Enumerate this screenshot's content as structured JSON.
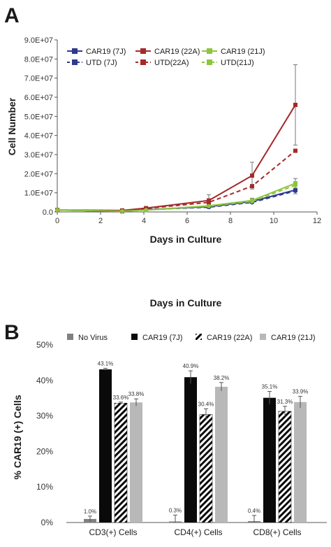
{
  "chart_data": [
    {
      "panel": "A",
      "type": "line",
      "xlabel": "Days in Culture",
      "ylabel": "Cell Number",
      "xlim": [
        0,
        12
      ],
      "ylim": [
        0,
        90000000
      ],
      "x_ticks": [
        "0",
        "2",
        "4",
        "6",
        "8",
        "10",
        "12"
      ],
      "y_ticks": [
        "0.0",
        "1.0E+07",
        "2.0E+07",
        "3.0E+07",
        "4.0E+07",
        "5.0E+07",
        "6.0E+07",
        "7.0E+07",
        "8.0E+07",
        "9.0E+07"
      ],
      "grid": false,
      "legend_position": "top-left",
      "series": [
        {
          "name": "CAR19 (7J)",
          "color": "#2e3a8c",
          "style": "solid",
          "marker": "square",
          "x": [
            0,
            3,
            4.1,
            7,
            9,
            11
          ],
          "y": [
            1000000,
            300000,
            1200000,
            2800000,
            5500000,
            11500000
          ],
          "err": [
            0,
            0,
            0,
            500000,
            1000000,
            2000000
          ]
        },
        {
          "name": "CAR19 (22A)",
          "color": "#a52a2a",
          "style": "solid",
          "marker": "square",
          "x": [
            0,
            3,
            4.1,
            7,
            9,
            11
          ],
          "y": [
            1000000,
            800000,
            2000000,
            6000000,
            19000000,
            56000000
          ],
          "err": [
            0,
            0,
            0,
            3000000,
            7000000,
            21000000
          ]
        },
        {
          "name": "CAR19 (21J)",
          "color": "#8cc63e",
          "style": "solid",
          "marker": "square",
          "x": [
            0,
            3,
            4.1,
            7,
            9,
            11
          ],
          "y": [
            1000000,
            400000,
            1000000,
            3200000,
            6000000,
            15000000
          ],
          "err": [
            0,
            0,
            0,
            600000,
            1200000,
            2500000
          ]
        },
        {
          "name": "UTD (7J)",
          "color": "#2e3a8c",
          "style": "dashed",
          "marker": "circle",
          "x": [
            0,
            3,
            4.1,
            7,
            9,
            11
          ],
          "y": [
            1000000,
            300000,
            1200000,
            2500000,
            5000000,
            11000000
          ],
          "err": [
            0,
            0,
            0,
            0,
            0,
            0
          ]
        },
        {
          "name": "UTD(22A)",
          "color": "#a52a2a",
          "style": "dashed",
          "marker": "square",
          "x": [
            0,
            3,
            4.1,
            7,
            9,
            11
          ],
          "y": [
            1000000,
            700000,
            1800000,
            5000000,
            13500000,
            32000000
          ],
          "err": [
            0,
            0,
            0,
            0,
            0,
            0
          ]
        },
        {
          "name": "UTD(21J)",
          "color": "#8cc63e",
          "style": "dashed",
          "marker": "circle",
          "x": [
            0,
            3,
            4.1,
            7,
            9,
            11
          ],
          "y": [
            1000000,
            400000,
            1000000,
            3000000,
            5500000,
            14000000
          ],
          "err": [
            0,
            0,
            0,
            0,
            0,
            0
          ]
        }
      ]
    },
    {
      "panel": "B",
      "type": "bar",
      "title": "Days in Culture",
      "ylabel": "% CAR19 (+) Cells",
      "ylim": [
        0,
        50
      ],
      "y_ticks": [
        "0%",
        "10%",
        "20%",
        "30%",
        "40%",
        "50%"
      ],
      "grid": false,
      "legend_position": "top",
      "categories": [
        "CD3(+) Cells",
        "CD4(+) Cells",
        "CD8(+) Cells"
      ],
      "series": [
        {
          "name": "No Virus",
          "fill": "#808080",
          "pattern": "solid",
          "values": [
            1.0,
            0.3,
            0.4
          ],
          "err": [
            0.8,
            1.8,
            1.6
          ],
          "labels": [
            "1.0%",
            "0.3%",
            "0.4%"
          ]
        },
        {
          "name": "CAR19 (7J)",
          "fill": "#0a0a0a",
          "pattern": "solid",
          "values": [
            43.1,
            40.9,
            35.1
          ],
          "err": [
            0.3,
            1.8,
            1.8
          ],
          "labels": [
            "43.1%",
            "40.9%",
            "35.1%"
          ]
        },
        {
          "name": "CAR19 (22A)",
          "fill": "#0a0a0a",
          "pattern": "hatch",
          "values": [
            33.6,
            30.4,
            31.3
          ],
          "err": [
            0.3,
            1.6,
            1.4
          ],
          "labels": [
            "33.6%",
            "30.4%",
            "31.3%"
          ]
        },
        {
          "name": "CAR19 (21J)",
          "fill": "#b8b8b8",
          "pattern": "solid",
          "values": [
            33.8,
            38.2,
            33.9
          ],
          "err": [
            1.0,
            1.2,
            1.6
          ],
          "labels": [
            "33.8%",
            "38.2%",
            "33.9%"
          ]
        }
      ]
    }
  ]
}
